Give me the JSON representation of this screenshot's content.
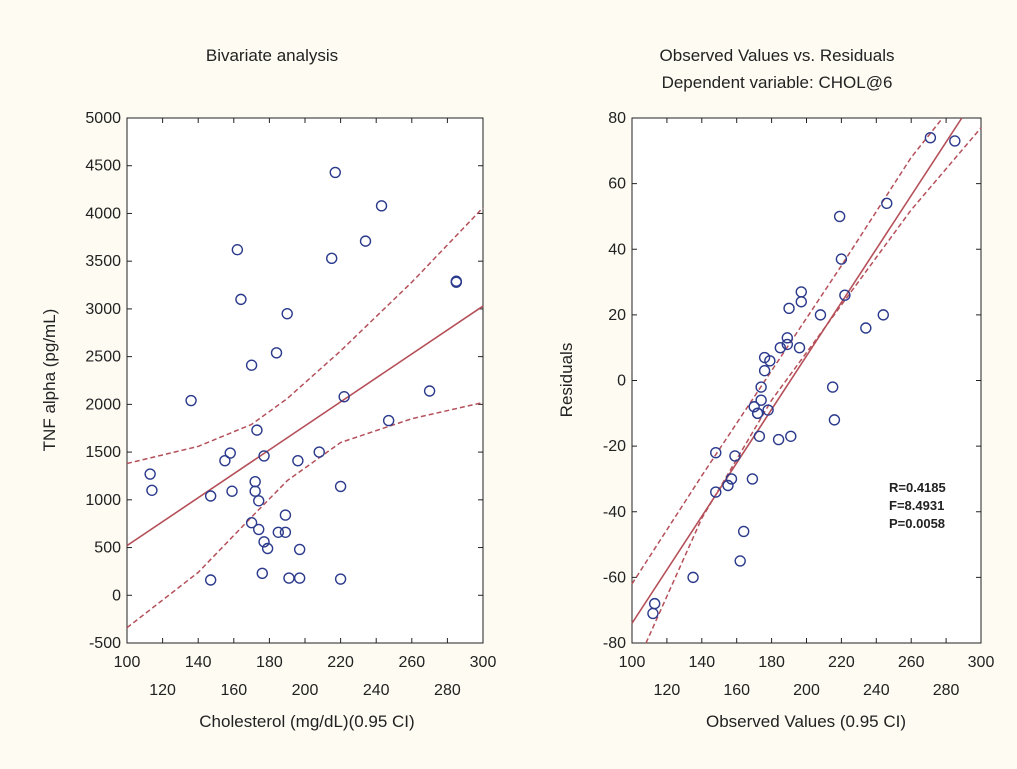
{
  "colors": {
    "background": "#fdfbf2",
    "plot_background": "#ffffff",
    "point": "#2b3a8c",
    "fit_line": "#b5505a",
    "ci_line": "#b5505a",
    "grid": "#d9d9d9"
  },
  "chart_data": [
    {
      "type": "scatter",
      "title": "Bivariate analysis",
      "xlabel": "Cholesterol (mg/dL)(0.95 CI)",
      "ylabel": "TNF alpha (pg/mL)",
      "xlim": [
        100,
        300
      ],
      "ylim": [
        -500,
        5000
      ],
      "x_ticks_major": [
        "100",
        "140",
        "180",
        "220",
        "260",
        "300"
      ],
      "x_ticks_minor": [
        "120",
        "160",
        "200",
        "240",
        "280"
      ],
      "y_ticks": [
        "-500",
        "0",
        "500",
        "1000",
        "1500",
        "2000",
        "2500",
        "3000",
        "3500",
        "4000",
        "4500",
        "5000"
      ],
      "grid": false,
      "points": [
        {
          "x": 113,
          "y": 1270
        },
        {
          "x": 114,
          "y": 1100
        },
        {
          "x": 136,
          "y": 2040
        },
        {
          "x": 147,
          "y": 1040
        },
        {
          "x": 147,
          "y": 160
        },
        {
          "x": 155,
          "y": 1410
        },
        {
          "x": 158,
          "y": 1490
        },
        {
          "x": 159,
          "y": 1090
        },
        {
          "x": 162,
          "y": 3620
        },
        {
          "x": 164,
          "y": 3100
        },
        {
          "x": 170,
          "y": 2410
        },
        {
          "x": 170,
          "y": 760
        },
        {
          "x": 172,
          "y": 1190
        },
        {
          "x": 172,
          "y": 1090
        },
        {
          "x": 173,
          "y": 1730
        },
        {
          "x": 174,
          "y": 990
        },
        {
          "x": 174,
          "y": 690
        },
        {
          "x": 176,
          "y": 230
        },
        {
          "x": 177,
          "y": 1460
        },
        {
          "x": 177,
          "y": 560
        },
        {
          "x": 179,
          "y": 490
        },
        {
          "x": 184,
          "y": 2540
        },
        {
          "x": 185,
          "y": 660
        },
        {
          "x": 189,
          "y": 840
        },
        {
          "x": 189,
          "y": 660
        },
        {
          "x": 190,
          "y": 2950
        },
        {
          "x": 191,
          "y": 180
        },
        {
          "x": 196,
          "y": 1410
        },
        {
          "x": 197,
          "y": 480
        },
        {
          "x": 197,
          "y": 180
        },
        {
          "x": 208,
          "y": 1500
        },
        {
          "x": 215,
          "y": 3530
        },
        {
          "x": 217,
          "y": 4430
        },
        {
          "x": 220,
          "y": 1140
        },
        {
          "x": 220,
          "y": 170
        },
        {
          "x": 222,
          "y": 2080
        },
        {
          "x": 234,
          "y": 3710
        },
        {
          "x": 243,
          "y": 4080
        },
        {
          "x": 247,
          "y": 1830
        },
        {
          "x": 270,
          "y": 2140
        },
        {
          "x": 285,
          "y": 3290
        },
        {
          "x": 285,
          "y": 3280
        }
      ],
      "fit_line": [
        {
          "x": 100,
          "y": 520
        },
        {
          "x": 300,
          "y": 3030
        }
      ],
      "ci_upper": [
        {
          "x": 100,
          "y": 1380
        },
        {
          "x": 140,
          "y": 1560
        },
        {
          "x": 170,
          "y": 1790
        },
        {
          "x": 190,
          "y": 2060
        },
        {
          "x": 220,
          "y": 2560
        },
        {
          "x": 260,
          "y": 3280
        },
        {
          "x": 300,
          "y": 4060
        }
      ],
      "ci_lower": [
        {
          "x": 100,
          "y": -340
        },
        {
          "x": 140,
          "y": 240
        },
        {
          "x": 170,
          "y": 820
        },
        {
          "x": 190,
          "y": 1200
        },
        {
          "x": 220,
          "y": 1600
        },
        {
          "x": 260,
          "y": 1850
        },
        {
          "x": 300,
          "y": 2020
        }
      ]
    },
    {
      "type": "scatter",
      "title": "Observed Values vs. Residuals",
      "subtitle": "Dependent variable: CHOL@6",
      "xlabel": "Observed Values (0.95 CI)",
      "ylabel": "Residuals",
      "xlim": [
        100,
        300
      ],
      "ylim": [
        -80,
        80
      ],
      "x_ticks_major": [
        "100",
        "140",
        "180",
        "220",
        "260",
        "300"
      ],
      "x_ticks_minor": [
        "120",
        "160",
        "200",
        "240",
        "280"
      ],
      "y_ticks": [
        "-80",
        "-60",
        "-40",
        "-20",
        "0",
        "20",
        "40",
        "60",
        "80"
      ],
      "grid": false,
      "stats": [
        "R=0.4185",
        "F=8.4931",
        "P=0.0058"
      ],
      "points": [
        {
          "x": 113,
          "y": -68
        },
        {
          "x": 112,
          "y": -71
        },
        {
          "x": 135,
          "y": -60
        },
        {
          "x": 148,
          "y": -22
        },
        {
          "x": 148,
          "y": -34
        },
        {
          "x": 155,
          "y": -32
        },
        {
          "x": 157,
          "y": -30
        },
        {
          "x": 159,
          "y": -23
        },
        {
          "x": 162,
          "y": -55
        },
        {
          "x": 164,
          "y": -46
        },
        {
          "x": 169,
          "y": -30
        },
        {
          "x": 170,
          "y": -8
        },
        {
          "x": 172,
          "y": -10
        },
        {
          "x": 172,
          "y": -10
        },
        {
          "x": 173,
          "y": -17
        },
        {
          "x": 174,
          "y": -6
        },
        {
          "x": 174,
          "y": -2
        },
        {
          "x": 176,
          "y": 7
        },
        {
          "x": 176,
          "y": 3
        },
        {
          "x": 178,
          "y": -9
        },
        {
          "x": 179,
          "y": 6
        },
        {
          "x": 184,
          "y": -18
        },
        {
          "x": 185,
          "y": 10
        },
        {
          "x": 189,
          "y": 13
        },
        {
          "x": 189,
          "y": 11
        },
        {
          "x": 190,
          "y": 22
        },
        {
          "x": 191,
          "y": -17
        },
        {
          "x": 196,
          "y": 10
        },
        {
          "x": 197,
          "y": 24
        },
        {
          "x": 197,
          "y": 27
        },
        {
          "x": 208,
          "y": 20
        },
        {
          "x": 215,
          "y": -2
        },
        {
          "x": 216,
          "y": -12
        },
        {
          "x": 219,
          "y": 50
        },
        {
          "x": 220,
          "y": 37
        },
        {
          "x": 222,
          "y": 26
        },
        {
          "x": 234,
          "y": 16
        },
        {
          "x": 244,
          "y": 20
        },
        {
          "x": 246,
          "y": 54
        },
        {
          "x": 271,
          "y": 74
        },
        {
          "x": 285,
          "y": 73
        }
      ],
      "fit_line": [
        {
          "x": 100,
          "y": -74
        },
        {
          "x": 289,
          "y": 80
        }
      ],
      "ci_upper": [
        {
          "x": 100,
          "y": -62
        },
        {
          "x": 140,
          "y": -29
        },
        {
          "x": 180,
          "y": 3
        },
        {
          "x": 220,
          "y": 35
        },
        {
          "x": 260,
          "y": 68
        },
        {
          "x": 278,
          "y": 80
        }
      ],
      "ci_lower": [
        {
          "x": 108,
          "y": -80
        },
        {
          "x": 140,
          "y": -42
        },
        {
          "x": 180,
          "y": -6
        },
        {
          "x": 220,
          "y": 23
        },
        {
          "x": 260,
          "y": 52
        },
        {
          "x": 300,
          "y": 77
        }
      ]
    }
  ]
}
